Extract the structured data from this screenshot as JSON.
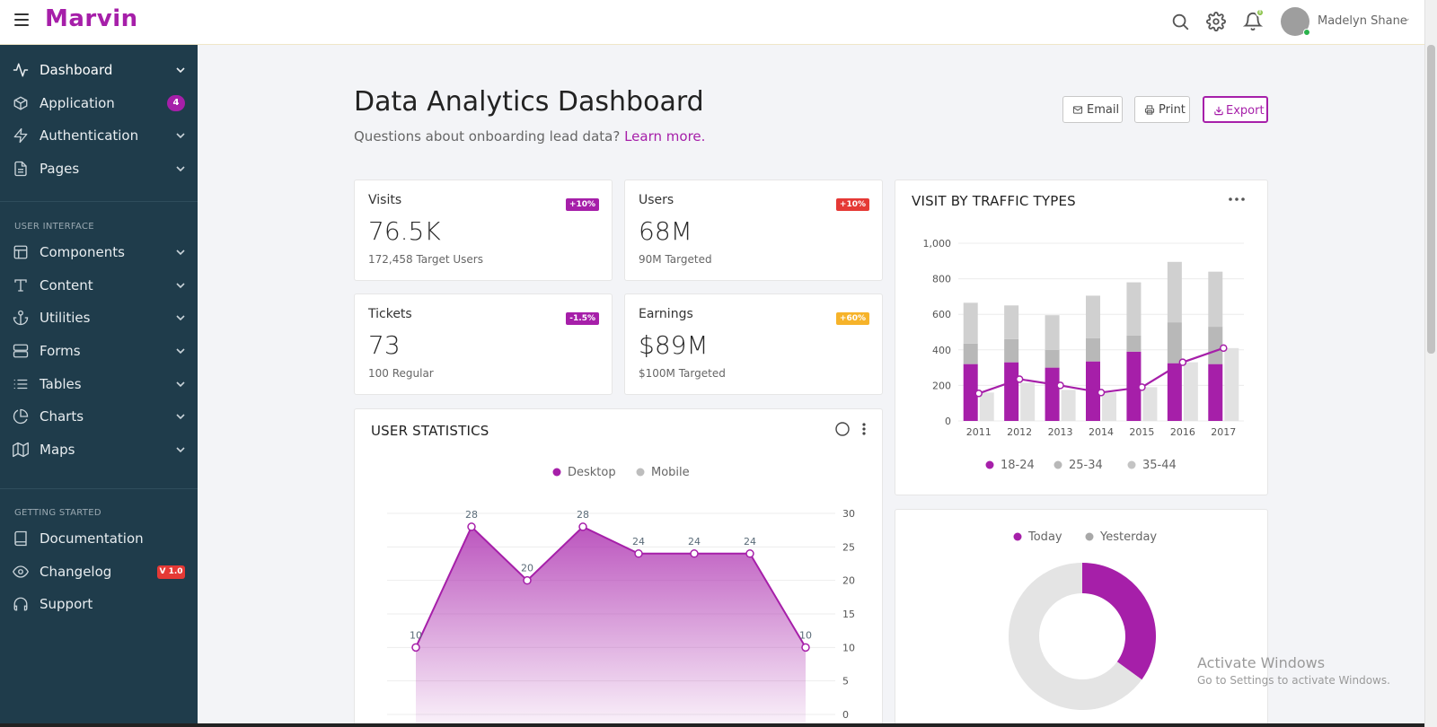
{
  "app": {
    "brand": "Marvin"
  },
  "header": {
    "user_name": "Madelyn Shane",
    "notification_count": "8",
    "icons": [
      "menu-icon",
      "search-icon",
      "gear-icon",
      "bell-icon"
    ]
  },
  "sidebar": {
    "items": [
      {
        "label": "Dashboard",
        "icon": "pulse-icon"
      },
      {
        "label": "Application",
        "icon": "box-icon",
        "badge": "4"
      },
      {
        "label": "Authentication",
        "icon": "bolt-icon"
      },
      {
        "label": "Pages",
        "icon": "file-icon"
      },
      {
        "label": "Components",
        "icon": "layout-icon"
      },
      {
        "label": "Content",
        "icon": "type-icon"
      },
      {
        "label": "Utilities",
        "icon": "anchor-icon"
      },
      {
        "label": "Forms",
        "icon": "server-icon"
      },
      {
        "label": "Tables",
        "icon": "list-icon"
      },
      {
        "label": "Charts",
        "icon": "pie-chart-icon"
      },
      {
        "label": "Maps",
        "icon": "map-icon"
      },
      {
        "label": "Documentation",
        "icon": "book-icon"
      },
      {
        "label": "Changelog",
        "icon": "eye-icon",
        "badge": "V 1.0"
      },
      {
        "label": "Support",
        "icon": "headphones-icon"
      }
    ],
    "sections": [
      "USER INTERFACE",
      "GETTING STARTED"
    ]
  },
  "page": {
    "title": "Data Analytics Dashboard",
    "subtitle": "Questions about onboarding lead data?",
    "learn_more": "Learn more.",
    "buttons": {
      "email": "Email",
      "print": "Print",
      "export": "Export"
    }
  },
  "stats": [
    {
      "label": "Visits",
      "value": "76.5K",
      "sub": "172,458 Target Users",
      "badge": "+10%",
      "badge_color": "#a61fa9"
    },
    {
      "label": "Users",
      "value": "68M",
      "sub": "90M Targeted",
      "badge": "+10%",
      "badge_color": "#e53935"
    },
    {
      "label": "Tickets",
      "value": "73",
      "sub": "100 Regular",
      "badge": "-1.5%",
      "badge_color": "#a61fa9"
    },
    {
      "label": "Earnings",
      "value": "$89M",
      "sub": "$100M Targeted",
      "badge": "+60%",
      "badge_color": "#f6b32a"
    }
  ],
  "colors": {
    "accent": "#a61fa9",
    "sidebar": "#1f3c4b",
    "danger": "#e53935",
    "warning": "#f6b32a"
  },
  "chart_data": [
    {
      "type": "bar",
      "title": "VISIT BY TRAFFIC TYPES",
      "categories": [
        "2011",
        "2012",
        "2013",
        "2014",
        "2015",
        "2016",
        "2017"
      ],
      "ylim": [
        0,
        1000
      ],
      "yticks": [
        "0",
        "200",
        "400",
        "600",
        "800",
        "1,000"
      ],
      "grid": true,
      "legend": "bottom",
      "series": [
        {
          "name": "18-24",
          "values": [
            320,
            330,
            300,
            335,
            390,
            325,
            320
          ],
          "color": "#a61fa9"
        },
        {
          "name": "25-34",
          "values": [
            115,
            130,
            100,
            130,
            90,
            230,
            210
          ],
          "color": "#b8b8b8"
        },
        {
          "name": "35-44",
          "values": [
            230,
            190,
            195,
            240,
            300,
            340,
            310
          ],
          "color": "#d0d0d0"
        }
      ],
      "side_bars": [
        160,
        215,
        175,
        160,
        190,
        330,
        410
      ],
      "line": [
        155,
        235,
        200,
        160,
        190,
        330,
        410
      ]
    },
    {
      "type": "area",
      "title": "USER STATISTICS",
      "ylim": [
        0,
        30
      ],
      "yticks": [
        "0",
        "5",
        "10",
        "15",
        "20",
        "25",
        "30"
      ],
      "legend": "top",
      "series": [
        {
          "name": "Desktop",
          "values": [
            10,
            28,
            20,
            28,
            24,
            24,
            24,
            10
          ],
          "color": "#a61fa9"
        },
        {
          "name": "Mobile",
          "values": [],
          "color": "#bdbdbd"
        }
      ]
    },
    {
      "type": "pie",
      "legend": "top",
      "series": [
        {
          "name": "Today",
          "value": 35,
          "color": "#a61fa9"
        },
        {
          "name": "Yesterday",
          "value": 65,
          "color": "#e4e4e4"
        }
      ]
    }
  ],
  "watermark": {
    "title": "Activate Windows",
    "sub": "Go to Settings to activate Windows."
  }
}
